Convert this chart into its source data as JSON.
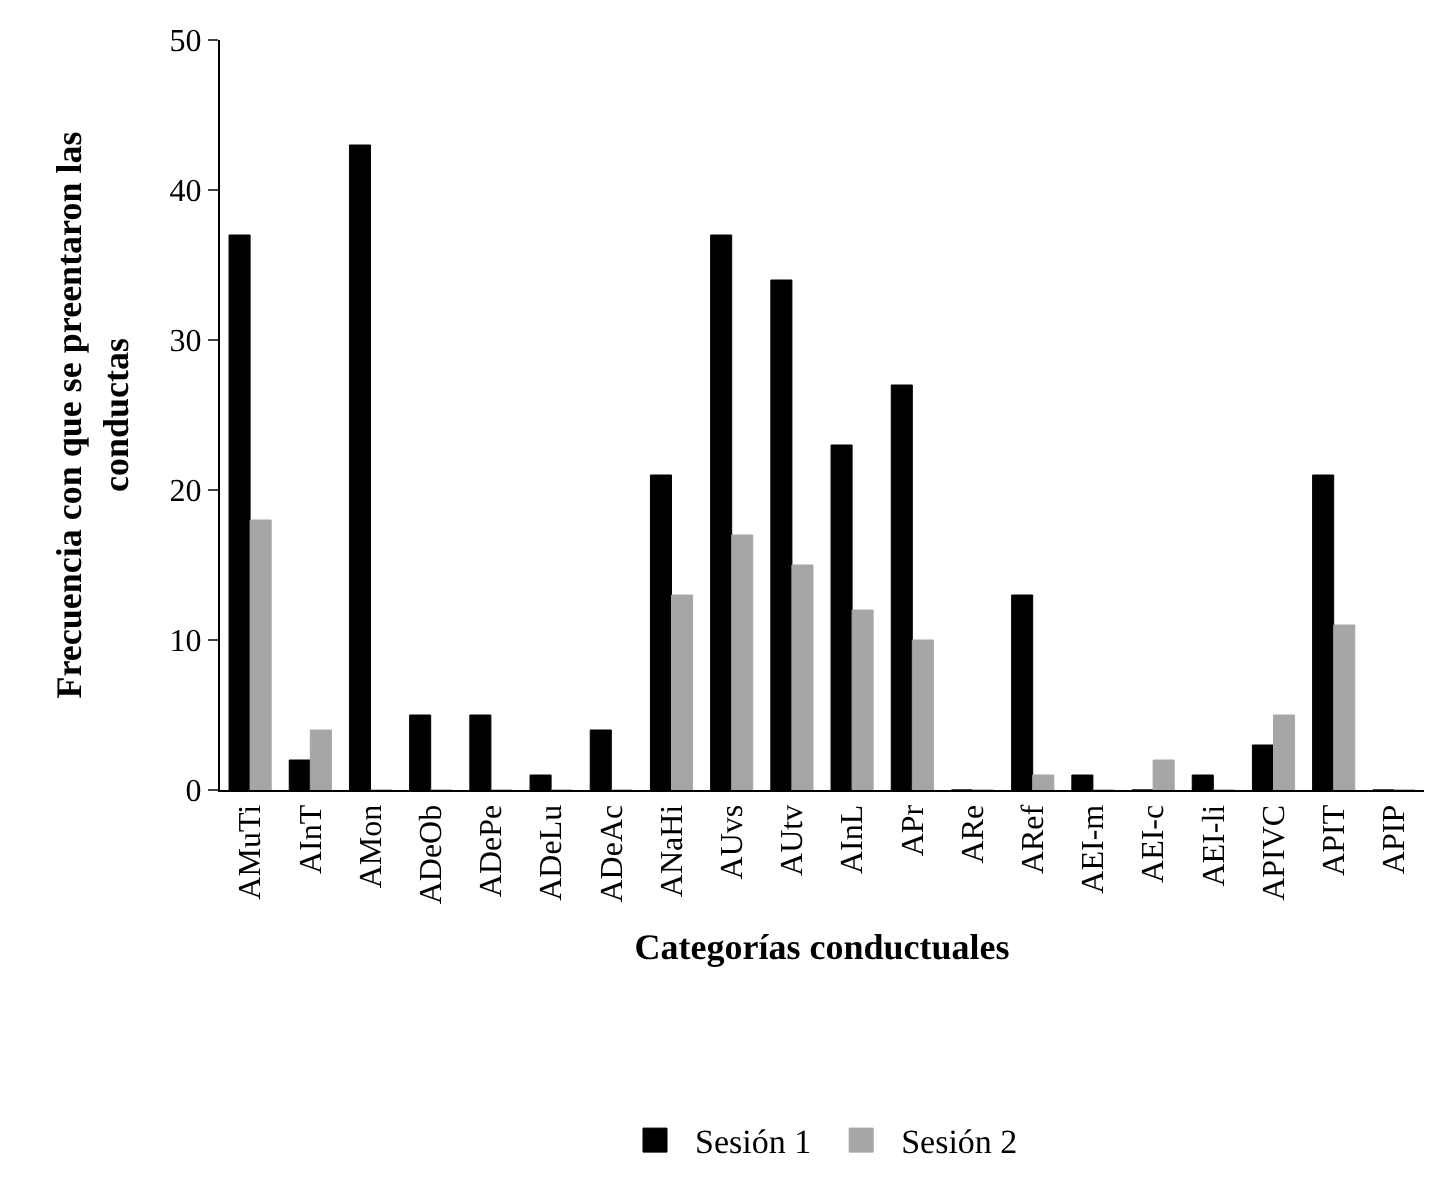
{
  "chart_data": {
    "type": "bar",
    "xlabel": "Categorías conductuales",
    "ylabel": "Frecuencia con que se preentaron las conductas",
    "categories": [
      "AMuTi",
      "AInT",
      "AMon",
      "ADeOb",
      "ADePe",
      "ADeLu",
      "ADeAc",
      "ANaHi",
      "AUvs",
      "AUtv",
      "AInL",
      "APr",
      "ARe",
      "ARef",
      "AEI-m",
      "AEI-c",
      "AEI-li",
      "APIVC",
      "APIT",
      "APIP"
    ],
    "series": [
      {
        "name": "Sesión 1",
        "color": "#000000",
        "values": [
          37,
          2,
          43,
          5,
          5,
          1,
          4,
          21,
          37,
          34,
          23,
          27,
          0,
          13,
          1,
          0,
          1,
          3,
          21,
          0
        ]
      },
      {
        "name": "Sesión 2",
        "color": "#a6a6a6",
        "values": [
          18,
          4,
          0,
          0,
          0,
          0,
          0,
          13,
          17,
          15,
          12,
          10,
          0,
          1,
          0,
          2,
          0,
          5,
          11,
          0
        ]
      }
    ],
    "ylim": [
      0,
      50
    ],
    "yticks": [
      0,
      10,
      20,
      30,
      40,
      50
    ],
    "legend": "bottom"
  }
}
